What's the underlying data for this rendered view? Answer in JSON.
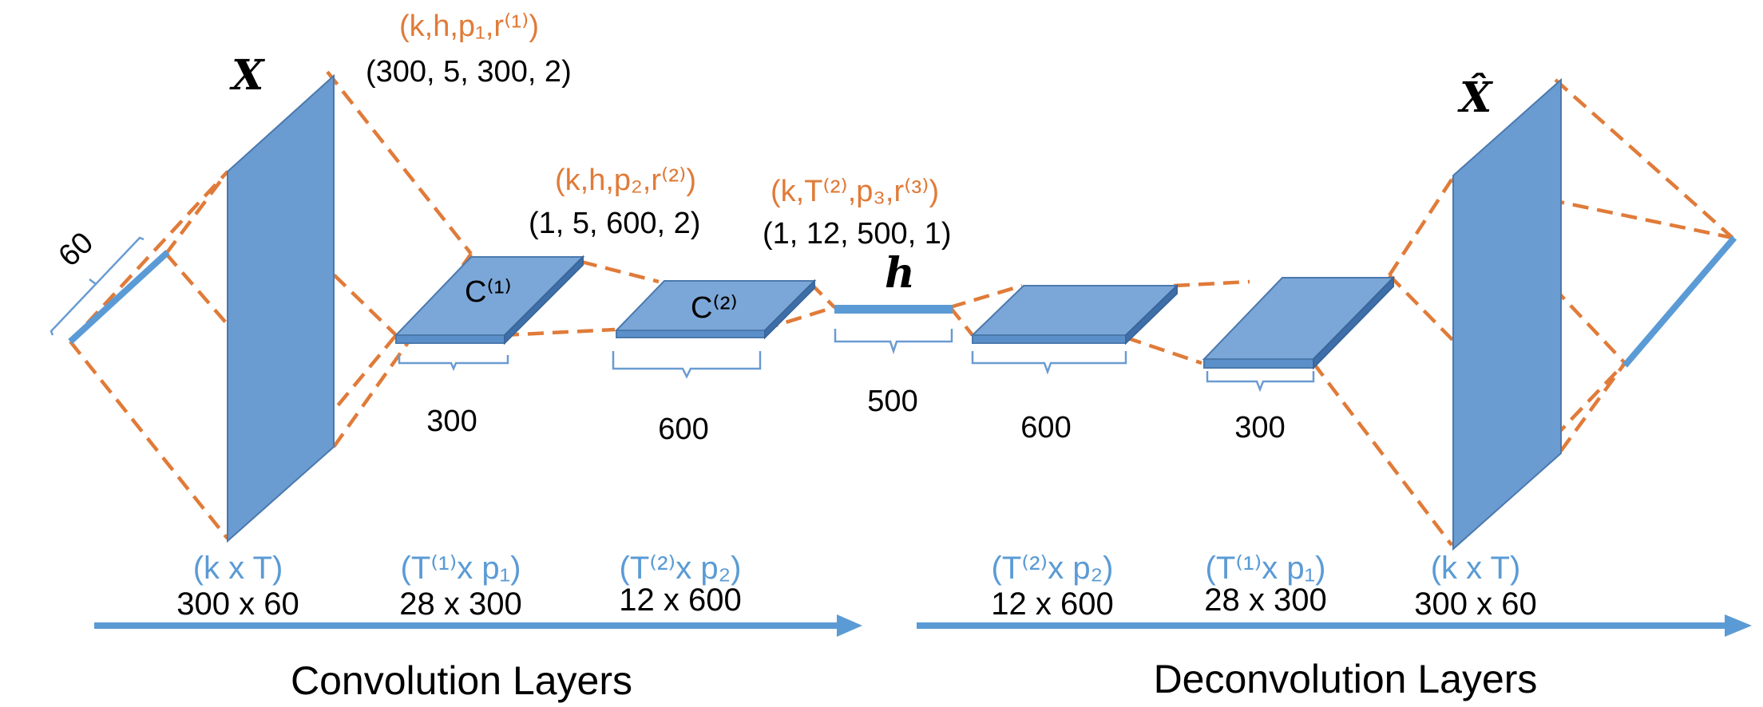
{
  "conv": {
    "input_var": "X",
    "input_width_label": "60",
    "layer1": {
      "param_label": "(k,h,p₁,r⁽¹⁾)",
      "param_values": "(300, 5, 300, 2)",
      "map_label": "C⁽¹⁾",
      "size": "300"
    },
    "layer2": {
      "param_label": "(k,h,p₂,r⁽²⁾)",
      "param_values": "(1, 5, 600, 2)",
      "map_label": "C⁽²⁾",
      "size": "600"
    },
    "layer3": {
      "param_label": "(k,T⁽²⁾,p₃,r⁽³⁾)",
      "param_values": "(1, 12, 500, 1)"
    },
    "dims": [
      {
        "symbolic": "(k x T)",
        "value": "300 x 60"
      },
      {
        "symbolic": "(T⁽¹⁾x p₁)",
        "value": "28 x 300"
      },
      {
        "symbolic": "(T⁽²⁾x p₂)",
        "value": "12 x 600"
      }
    ],
    "title": "Convolution Layers"
  },
  "latent": {
    "var": "h",
    "size": "500"
  },
  "deconv": {
    "output_var": "X̂",
    "layer1_size": "600",
    "layer2_size": "300",
    "dims": [
      {
        "symbolic": "(T⁽²⁾x p₂)",
        "value": "12 x 600"
      },
      {
        "symbolic": "(T⁽¹⁾x p₁)",
        "value": "28 x 300"
      },
      {
        "symbolic": "(k x T)",
        "value": "300 x 60"
      }
    ],
    "title": "Deconvolution Layers"
  },
  "colors": {
    "orange": "#E07B39",
    "blue": "#5B9BD5",
    "plane": "#6A9BD1"
  }
}
